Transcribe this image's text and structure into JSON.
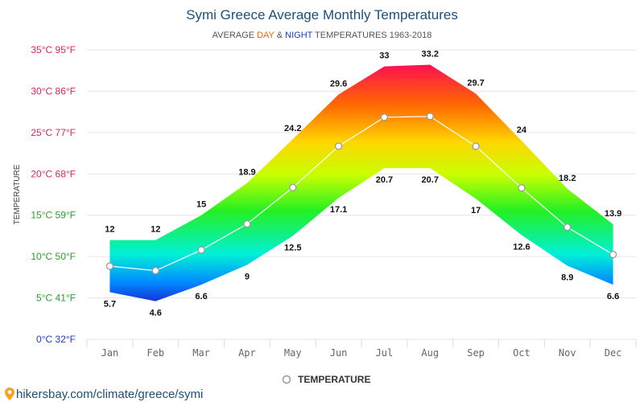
{
  "chart_data": {
    "type": "area",
    "title": "Symi Greece Average Monthly Temperatures",
    "subtitle": {
      "prefix": "AVERAGE ",
      "day": "DAY",
      "amp": " & ",
      "night": "NIGHT",
      "suffix": " TEMPERATURES 1963-2018"
    },
    "ylabel": "TEMPERATURE",
    "ylim": [
      0,
      35
    ],
    "yticks": [
      {
        "value": 0,
        "label": "0°C 32°F",
        "color": "#1a3fc4"
      },
      {
        "value": 5,
        "label": "5°C 41°F",
        "color": "#2aa02a"
      },
      {
        "value": 10,
        "label": "10°C 50°F",
        "color": "#2aa02a"
      },
      {
        "value": 15,
        "label": "15°C 59°F",
        "color": "#2aa02a"
      },
      {
        "value": 20,
        "label": "20°C 68°F",
        "color": "#e0245e"
      },
      {
        "value": 25,
        "label": "25°C 77°F",
        "color": "#e0245e"
      },
      {
        "value": 30,
        "label": "30°C 86°F",
        "color": "#e0245e"
      },
      {
        "value": 35,
        "label": "35°C 95°F",
        "color": "#e0245e"
      }
    ],
    "categories": [
      "Jan",
      "Feb",
      "Mar",
      "Apr",
      "May",
      "Jun",
      "Jul",
      "Aug",
      "Sep",
      "Oct",
      "Nov",
      "Dec"
    ],
    "series": [
      {
        "key": "day",
        "values": [
          12,
          12,
          15,
          18.9,
          24.2,
          29.6,
          33,
          33.2,
          29.7,
          24,
          18.2,
          13.9
        ]
      },
      {
        "key": "night",
        "values": [
          5.7,
          4.6,
          6.6,
          9,
          12.5,
          17.1,
          20.7,
          20.7,
          17,
          12.6,
          8.9,
          6.6
        ]
      },
      {
        "key": "average",
        "name": "TEMPERATURE",
        "values": [
          8.85,
          8.3,
          10.8,
          13.95,
          18.35,
          23.35,
          26.85,
          26.95,
          23.35,
          18.3,
          13.55,
          10.25
        ]
      }
    ],
    "grid": true,
    "legend": "bottom-center",
    "colors": {
      "day_label": "#ff6600",
      "night_label": "#1a3fc4",
      "average_line": "#ffffff",
      "marker_stroke": "#999999"
    }
  },
  "source": "hikersbay.com/climate/greece/symi",
  "icons": {
    "source": "map-pin-icon"
  }
}
